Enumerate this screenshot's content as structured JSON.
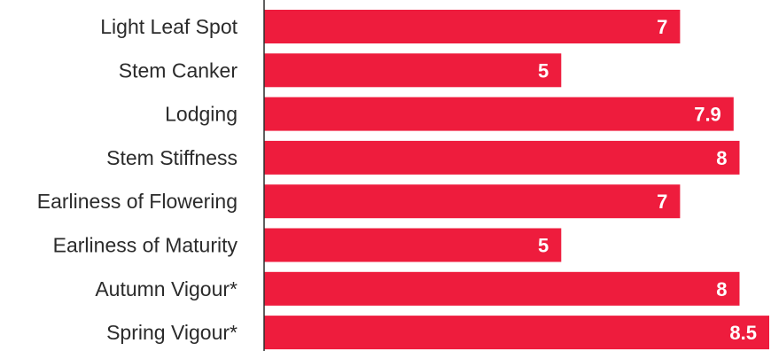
{
  "chart_data": {
    "type": "bar",
    "orientation": "horizontal",
    "categories": [
      "Light Leaf Spot",
      "Stem Canker",
      "Lodging",
      "Stem Stiffness",
      "Earliness of Flowering",
      "Earliness of Maturity",
      "Autumn Vigour*",
      "Spring Vigour*"
    ],
    "values": [
      7,
      5,
      7.9,
      8,
      7,
      5,
      8,
      8.5
    ],
    "value_labels": [
      "7",
      "5",
      "7.9",
      "8",
      "7",
      "5",
      "8",
      "8.5"
    ],
    "xlim": [
      0,
      8.5
    ],
    "grid": false,
    "legend": "none",
    "bar_color": "#ee1c3d",
    "axis_color": "#2b2b2b"
  }
}
